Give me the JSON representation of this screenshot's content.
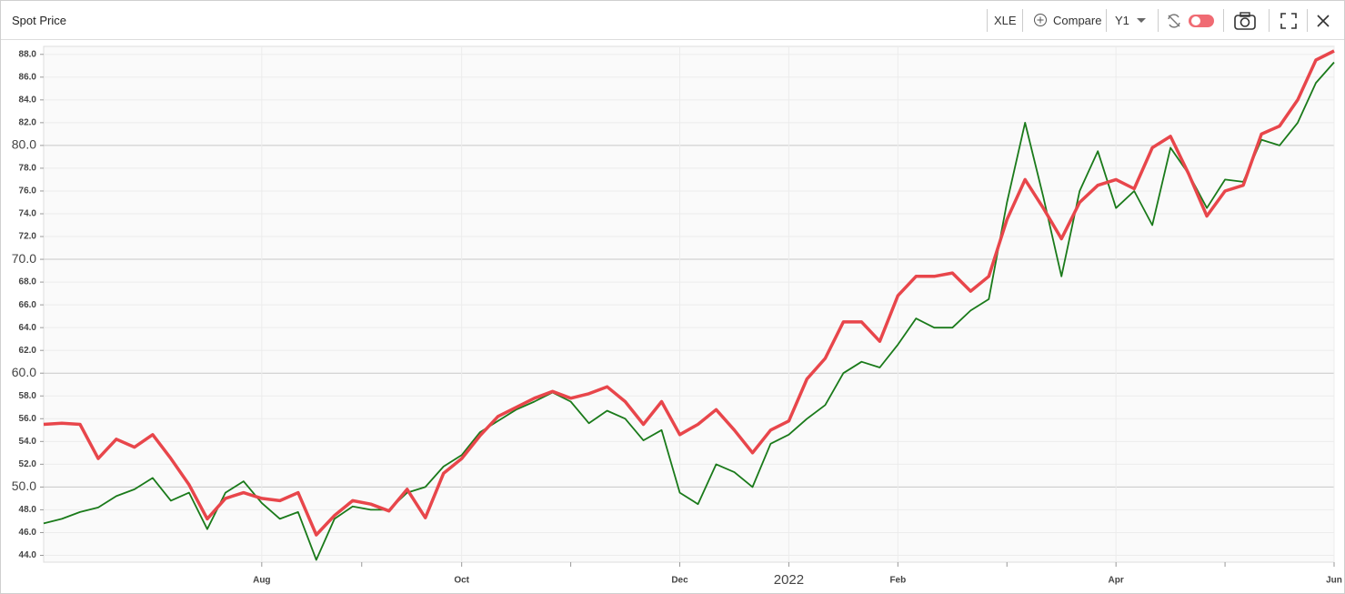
{
  "toolbar": {
    "symbol": "XLE",
    "compare": "Compare",
    "range": "Y1"
  },
  "chart_data": {
    "type": "line",
    "title": "Spot Price",
    "categories": [
      null,
      null,
      null,
      null,
      null,
      null,
      null,
      null,
      null,
      null,
      null,
      null,
      "Aug",
      null,
      null,
      null,
      null,
      null,
      null,
      null,
      null,
      null,
      null,
      "Oct",
      null,
      null,
      null,
      null,
      null,
      null,
      null,
      null,
      null,
      null,
      null,
      "Dec",
      null,
      null,
      null,
      null,
      null,
      "2022",
      null,
      null,
      null,
      null,
      null,
      "Feb",
      null,
      null,
      null,
      null,
      null,
      null,
      null,
      null,
      null,
      null,
      null,
      "Apr",
      null,
      null,
      null,
      null,
      null,
      null,
      null,
      null,
      null,
      null,
      null,
      "Jun"
    ],
    "series": [
      {
        "color": "#1a7a1a",
        "values": [
          46.8,
          47.2,
          47.8,
          48.2,
          49.2,
          49.8,
          50.8,
          48.8,
          49.5,
          46.3,
          49.5,
          50.5,
          48.6,
          47.2,
          47.8,
          43.6,
          47.2,
          48.3,
          48.0,
          48.0,
          49.5,
          50.0,
          51.8,
          52.8,
          54.8,
          55.8,
          56.8,
          57.5,
          58.3,
          57.5,
          55.6,
          56.7,
          56.0,
          54.1,
          55.0,
          49.5,
          48.5,
          52.0,
          51.3,
          50.0,
          53.8,
          54.6,
          56.0,
          57.2,
          60.0,
          61.0,
          60.5,
          62.5,
          64.8,
          64.0,
          64.0,
          65.5,
          66.5,
          75.0,
          82.0,
          75.5,
          68.5,
          76.0,
          79.5,
          74.5,
          76.0,
          73.0,
          79.8,
          77.5,
          74.5,
          77.0,
          76.8,
          80.5,
          80.0,
          82.0,
          85.5,
          87.3
        ]
      },
      {
        "color": "#e8464b",
        "values": [
          55.5,
          55.6,
          55.5,
          52.5,
          54.2,
          53.5,
          54.6,
          52.5,
          50.2,
          47.2,
          49.0,
          49.5,
          49.0,
          48.8,
          49.5,
          45.8,
          47.5,
          48.8,
          48.5,
          47.9,
          49.8,
          47.3,
          51.2,
          52.5,
          54.5,
          56.2,
          57.0,
          57.8,
          58.4,
          57.8,
          58.2,
          58.8,
          57.5,
          55.5,
          57.5,
          54.6,
          55.5,
          56.8,
          55.0,
          53.0,
          55.0,
          55.8,
          59.5,
          61.3,
          64.5,
          64.5,
          62.8,
          66.8,
          68.5,
          68.5,
          68.8,
          67.2,
          68.5,
          73.5,
          77.0,
          74.5,
          71.8,
          75.0,
          76.5,
          77.0,
          76.2,
          79.8,
          80.8,
          77.5,
          73.8,
          76.0,
          76.5,
          81.0,
          81.7,
          84.0,
          87.5,
          88.3
        ]
      }
    ],
    "ylim": [
      43.4,
      88.7
    ],
    "yticks": [
      {
        "value": 44,
        "label": "44.0"
      },
      {
        "value": 46,
        "label": "46.0"
      },
      {
        "value": 48,
        "label": "48.0"
      },
      {
        "value": 50,
        "label": "50.0"
      },
      {
        "value": 52,
        "label": "52.0"
      },
      {
        "value": 54,
        "label": "54.0"
      },
      {
        "value": 56,
        "label": "56.0"
      },
      {
        "value": 58,
        "label": "58.0"
      },
      {
        "value": 60,
        "label": "60.0"
      },
      {
        "value": 62,
        "label": "62.0"
      },
      {
        "value": 64,
        "label": "64.0"
      },
      {
        "value": 66,
        "label": "66.0"
      },
      {
        "value": 68,
        "label": "68.0"
      },
      {
        "value": 70,
        "label": "70.0"
      },
      {
        "value": 72,
        "label": "72.0"
      },
      {
        "value": 74,
        "label": "74.0"
      },
      {
        "value": 76,
        "label": "76.0"
      },
      {
        "value": 78,
        "label": "78.0"
      },
      {
        "value": 80,
        "label": "80.0"
      },
      {
        "value": 82,
        "label": "82.0"
      },
      {
        "value": 84,
        "label": "84.0"
      },
      {
        "value": 86,
        "label": "86.0"
      },
      {
        "value": 88,
        "label": "88.0"
      }
    ],
    "grid": true
  }
}
